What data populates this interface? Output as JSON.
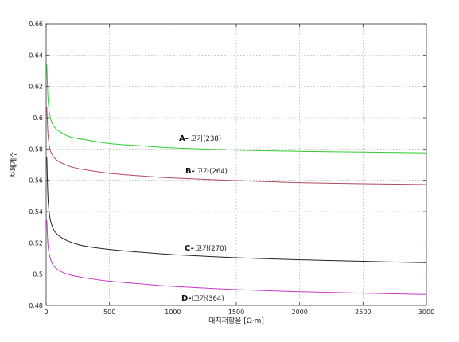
{
  "chart_data": {
    "type": "line",
    "title": "",
    "xlabel": "대지저항율 [Ω·m]",
    "ylabel": "차폐계수",
    "xlim": [
      0,
      3000
    ],
    "ylim": [
      0.48,
      0.66
    ],
    "x_ticks": [
      "0",
      "500",
      "1000",
      "1500",
      "2000",
      "2500",
      "3000"
    ],
    "y_ticks": [
      "0.48",
      "0.5",
      "0.52",
      "0.54",
      "0.56",
      "0.58",
      "0.6",
      "0.62",
      "0.64",
      "0.66"
    ],
    "grid": true,
    "legend": "inline labels",
    "series": [
      {
        "name_prefix": "A-",
        "name_rest": " 고가(238)",
        "color": "#2ecc2e",
        "x": [
          5,
          15,
          30,
          50,
          75,
          100,
          150,
          200,
          300,
          500,
          750,
          1000,
          1500,
          2000,
          2500,
          3000
        ],
        "y": [
          0.634,
          0.612,
          0.601,
          0.596,
          0.593,
          0.5915,
          0.589,
          0.5875,
          0.586,
          0.5835,
          0.582,
          0.5807,
          0.5793,
          0.5785,
          0.578,
          0.5775
        ]
      },
      {
        "name_prefix": "B-",
        "name_rest": " 고가(264)",
        "color": "#b04a5a",
        "x": [
          5,
          15,
          30,
          50,
          75,
          100,
          150,
          200,
          300,
          500,
          750,
          1000,
          1500,
          2000,
          2500,
          3000
        ],
        "y": [
          0.607,
          0.589,
          0.58,
          0.576,
          0.5735,
          0.572,
          0.57,
          0.5685,
          0.5668,
          0.5645,
          0.5628,
          0.5615,
          0.5598,
          0.5585,
          0.5578,
          0.5573
        ]
      },
      {
        "name_prefix": "C-",
        "name_rest": " 고가(270)",
        "color": "#222222",
        "x": [
          5,
          15,
          30,
          50,
          75,
          100,
          150,
          200,
          300,
          500,
          750,
          1000,
          1500,
          2000,
          2500,
          3000
        ],
        "y": [
          0.575,
          0.548,
          0.536,
          0.53,
          0.5265,
          0.5245,
          0.522,
          0.5203,
          0.518,
          0.5158,
          0.514,
          0.5125,
          0.5105,
          0.5092,
          0.5082,
          0.5073
        ]
      },
      {
        "name_prefix": "D-",
        "name_rest": "Ⅰ고가(364)",
        "color": "#cc33cc",
        "x": [
          5,
          15,
          30,
          50,
          75,
          100,
          150,
          200,
          300,
          500,
          750,
          1000,
          1500,
          2000,
          2500,
          3000
        ],
        "y": [
          0.535,
          0.518,
          0.511,
          0.5065,
          0.504,
          0.5025,
          0.5005,
          0.4993,
          0.4977,
          0.4955,
          0.4938,
          0.4922,
          0.4902,
          0.4888,
          0.4878,
          0.487
        ]
      }
    ]
  }
}
